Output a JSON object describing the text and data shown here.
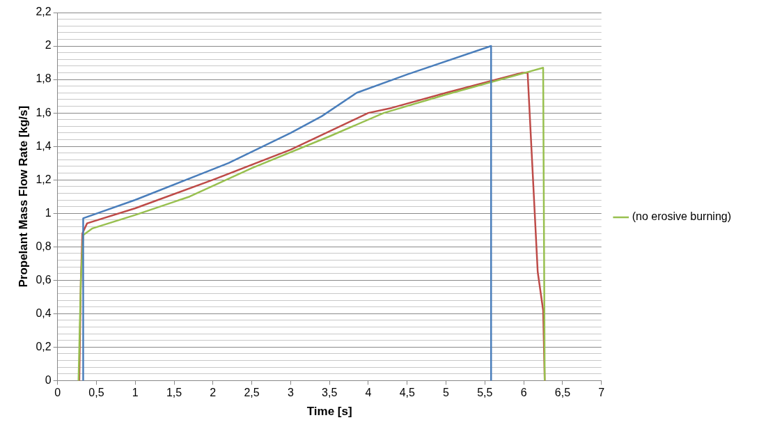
{
  "chart_data": {
    "type": "line",
    "xlabel": "Time [s]",
    "ylabel": "Propelant Mass Flow Rate [kg/s]",
    "xlim": [
      0,
      7
    ],
    "xticks": [
      0,
      {
        "value": 0.5,
        "label": "0,5"
      },
      1,
      {
        "value": 1.5,
        "label": "1,5"
      },
      2,
      {
        "value": 2.5,
        "label": "2,5"
      },
      3,
      {
        "value": 3.5,
        "label": "3,5"
      },
      4,
      {
        "value": 4.5,
        "label": "4,5"
      },
      5,
      {
        "value": 5.5,
        "label": "5,5"
      },
      6,
      {
        "value": 6.5,
        "label": "6,5"
      },
      7
    ],
    "ylim": [
      0,
      2.2
    ],
    "yticks": [
      0,
      {
        "value": 0.04,
        "label": null
      },
      {
        "value": 0.08,
        "label": null
      },
      {
        "value": 0.12,
        "label": null
      },
      {
        "value": 0.16,
        "label": null
      },
      {
        "value": 0.2,
        "label": "0,2"
      },
      {
        "value": 0.24,
        "label": null
      },
      {
        "value": 0.28,
        "label": null
      },
      {
        "value": 0.32,
        "label": null
      },
      {
        "value": 0.36,
        "label": null
      },
      {
        "value": 0.4,
        "label": "0,4"
      },
      {
        "value": 0.44,
        "label": null
      },
      {
        "value": 0.48,
        "label": null
      },
      {
        "value": 0.52,
        "label": null
      },
      {
        "value": 0.56,
        "label": null
      },
      {
        "value": 0.6,
        "label": "0,6"
      },
      {
        "value": 0.64,
        "label": null
      },
      {
        "value": 0.68,
        "label": null
      },
      {
        "value": 0.72,
        "label": null
      },
      {
        "value": 0.76,
        "label": null
      },
      {
        "value": 0.8,
        "label": "0,8"
      },
      {
        "value": 0.84,
        "label": null
      },
      {
        "value": 0.88,
        "label": null
      },
      {
        "value": 0.92,
        "label": null
      },
      {
        "value": 0.96,
        "label": null
      },
      1,
      {
        "value": 1.04,
        "label": null
      },
      {
        "value": 1.08,
        "label": null
      },
      {
        "value": 1.12,
        "label": null
      },
      {
        "value": 1.16,
        "label": null
      },
      {
        "value": 1.2,
        "label": "1,2"
      },
      {
        "value": 1.24,
        "label": null
      },
      {
        "value": 1.28,
        "label": null
      },
      {
        "value": 1.32,
        "label": null
      },
      {
        "value": 1.36,
        "label": null
      },
      {
        "value": 1.4,
        "label": "1,4"
      },
      {
        "value": 1.44,
        "label": null
      },
      {
        "value": 1.48,
        "label": null
      },
      {
        "value": 1.52,
        "label": null
      },
      {
        "value": 1.56,
        "label": null
      },
      {
        "value": 1.6,
        "label": "1,6"
      },
      {
        "value": 1.64,
        "label": null
      },
      {
        "value": 1.68,
        "label": null
      },
      {
        "value": 1.72,
        "label": null
      },
      {
        "value": 1.76,
        "label": null
      },
      {
        "value": 1.8,
        "label": "1,8"
      },
      {
        "value": 1.84,
        "label": null
      },
      {
        "value": 1.88,
        "label": null
      },
      {
        "value": 1.92,
        "label": null
      },
      {
        "value": 1.96,
        "label": null
      },
      2,
      {
        "value": 2.04,
        "label": null
      },
      {
        "value": 2.08,
        "label": null
      },
      {
        "value": 2.12,
        "label": null
      },
      {
        "value": 2.16,
        "label": null
      },
      {
        "value": 2.2,
        "label": "2,2"
      }
    ],
    "grid": "y",
    "legend": "right",
    "marker": "none",
    "line_style": "solid",
    "series": [
      {
        "color": "#4a7ebb",
        "x": [
          0.33,
          0.33,
          1.0,
          2.2,
          3.0,
          3.4,
          3.85,
          4.5,
          5.58,
          5.58
        ],
        "values": [
          0,
          0.97,
          1.08,
          1.3,
          1.48,
          1.58,
          1.72,
          1.83,
          2.0,
          0
        ]
      },
      {
        "name": "(no erosive burning)",
        "color": "#98c04f",
        "x": [
          0.27,
          0.3,
          0.33,
          0.45,
          1.0,
          1.7,
          2.5,
          3.5,
          4.2,
          5.0,
          6.25,
          6.27
        ],
        "values": [
          0,
          0.6,
          0.87,
          0.91,
          0.99,
          1.1,
          1.27,
          1.46,
          1.6,
          1.71,
          1.87,
          0
        ]
      },
      {
        "color": "#be4b48",
        "x": [
          0.28,
          0.3,
          0.32,
          0.38,
          1.0,
          2.0,
          3.0,
          4.0,
          4.3,
          5.0,
          5.98,
          6.05,
          6.18,
          6.25,
          6.27
        ],
        "values": [
          0,
          0.6,
          0.88,
          0.94,
          1.03,
          1.2,
          1.38,
          1.6,
          1.63,
          1.72,
          1.84,
          1.84,
          0.65,
          0.42,
          0
        ]
      }
    ]
  }
}
